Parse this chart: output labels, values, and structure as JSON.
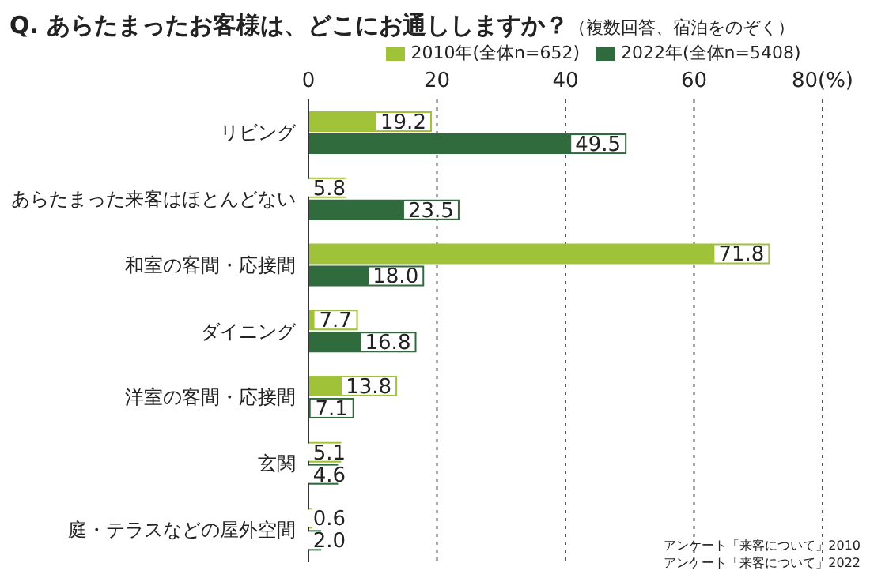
{
  "chart_data": {
    "type": "bar",
    "orientation": "horizontal",
    "title": "Q. あらたまったお客様は、どこにお通ししますか？",
    "subtitle": "（複数回答、宿泊をのぞく）",
    "categories": [
      "リビング",
      "あらたまった来客はほとんどない",
      "和室の客間・応接間",
      "ダイニング",
      "洋室の客間・応接間",
      "玄関",
      "庭・テラスなどの屋外空間"
    ],
    "series": [
      {
        "name": "2010年(全体n=652)",
        "color": "#a0c238",
        "values": [
          19.2,
          5.8,
          71.8,
          7.7,
          13.8,
          5.1,
          0.6
        ],
        "value_labels": [
          "19.2",
          "5.8",
          "71.8",
          "7.7",
          "13.8",
          "5.1",
          "0.6"
        ]
      },
      {
        "name": "2022年(全体n=5408)",
        "color": "#2f6b3c",
        "values": [
          49.5,
          23.5,
          18.0,
          16.8,
          7.1,
          4.6,
          2.0
        ],
        "value_labels": [
          "49.5",
          "23.5",
          "18.0",
          "16.8",
          "7.1",
          "4.6",
          "2.0"
        ]
      }
    ],
    "xlim": [
      0,
      80
    ],
    "xticks": [
      0,
      20,
      40,
      60,
      {
        "value": 80,
        "label": "80(%)"
      }
    ],
    "grid": "x",
    "legend": "top",
    "annotations": [
      "アンケート「来客について」2010",
      "アンケート「来客について」2022"
    ]
  }
}
